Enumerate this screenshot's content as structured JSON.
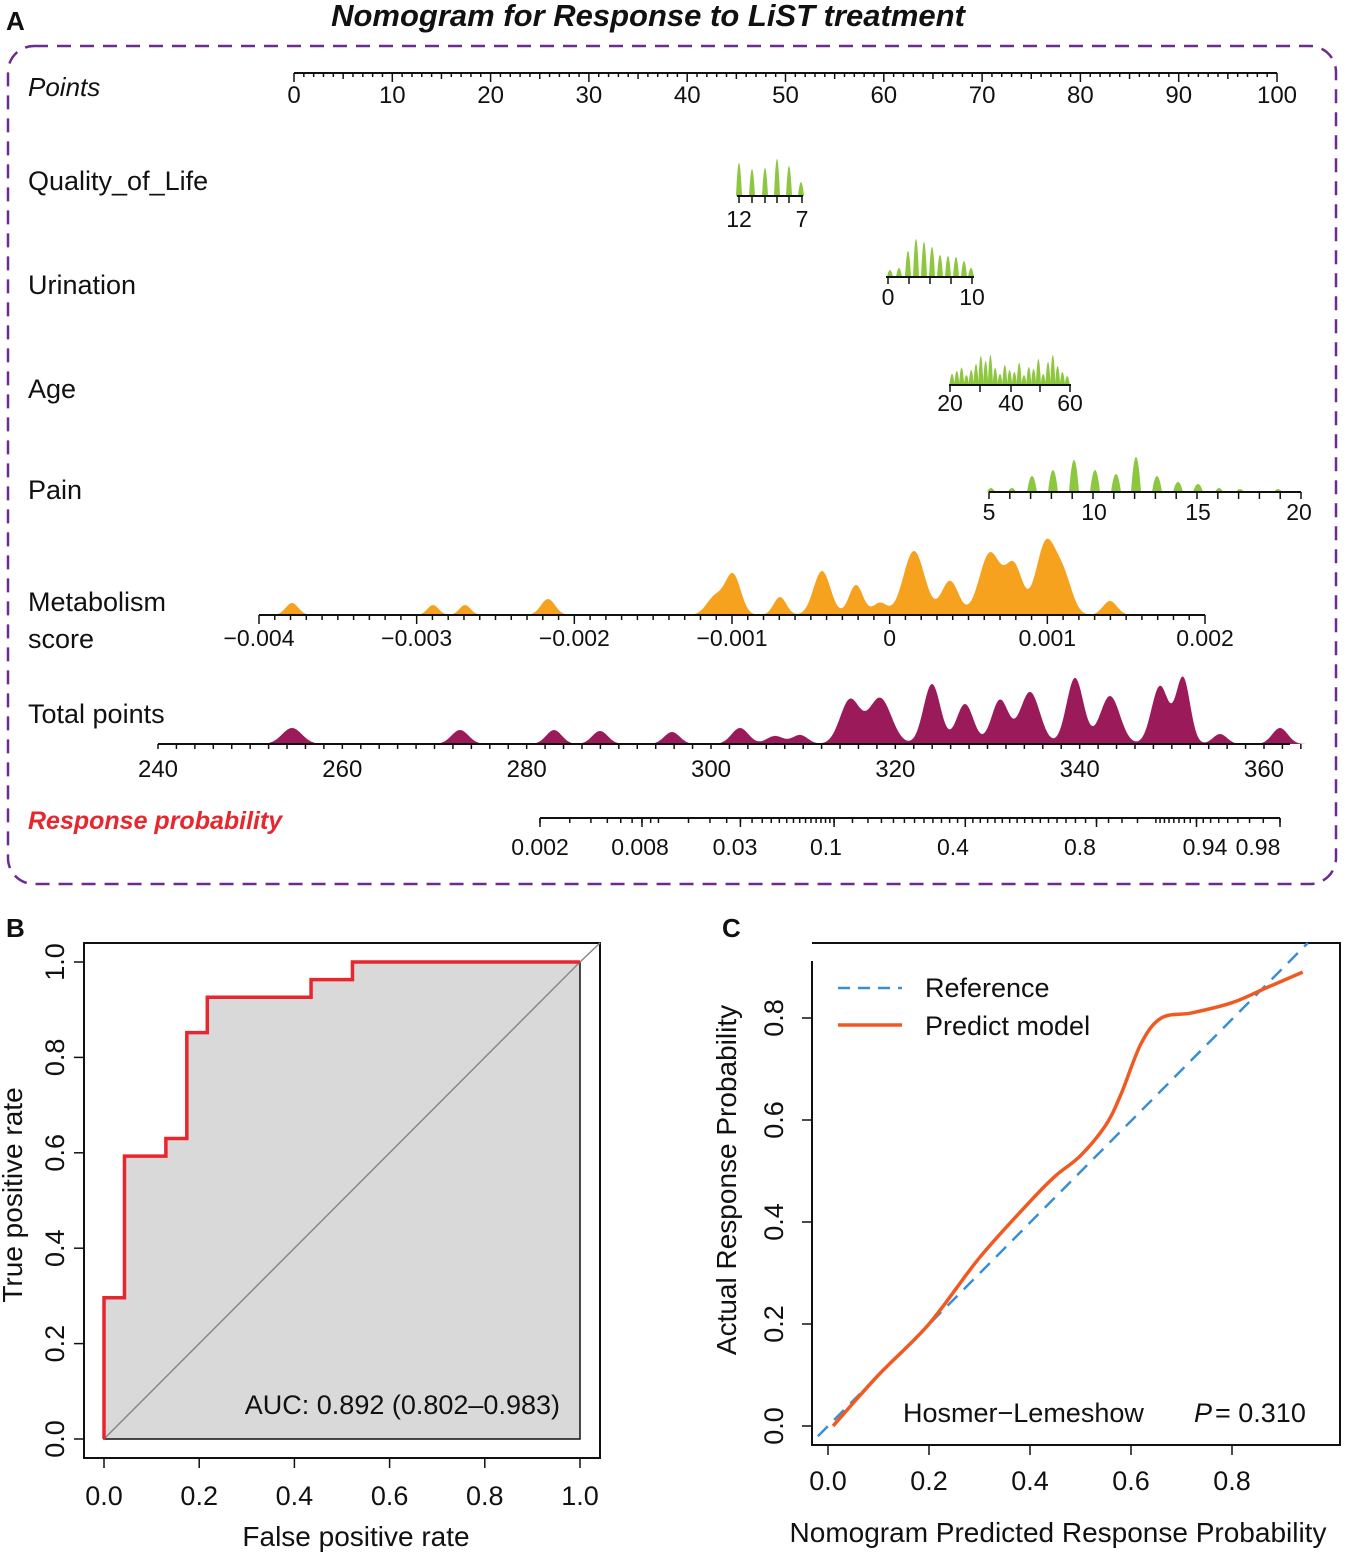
{
  "colors": {
    "green": "#8dc63f",
    "orange": "#f6a21e",
    "magenta": "#9b1b5a",
    "frame": "#6a2c8f",
    "red": "#e8262d",
    "roc_fill": "#d9d9d9",
    "blue": "#3a8fd4",
    "calib_orange": "#f05a22"
  },
  "panels": {
    "a_label": "A",
    "b_label": "B",
    "c_label": "C"
  },
  "nomogram": {
    "title": "Nomogram for Response to LiST treatment",
    "points_label": "Points",
    "points_ticks": [
      "0",
      "10",
      "20",
      "30",
      "40",
      "50",
      "60",
      "70",
      "80",
      "90",
      "100"
    ],
    "quality_label": "Quality_of_Life",
    "quality_ticks": [
      "12",
      "7"
    ],
    "urination_label": "Urination",
    "urination_ticks": [
      "0",
      "10"
    ],
    "age_label": "Age",
    "age_ticks": [
      "20",
      "40",
      "60"
    ],
    "pain_label": "Pain",
    "pain_ticks": [
      "5",
      "10",
      "15",
      "20"
    ],
    "metabolism_label_1": "Metabolism",
    "metabolism_label_2": "score",
    "metabolism_ticks": [
      "−0.004",
      "−0.003",
      "−0.002",
      "−0.001",
      "0",
      "0.001",
      "0.002"
    ],
    "total_label": "Total points",
    "total_ticks": [
      "240",
      "260",
      "280",
      "300",
      "320",
      "340",
      "360"
    ],
    "prob_label": "Response probability",
    "prob_ticks": [
      "0.002",
      "0.008",
      "0.03",
      "0.1",
      "0.4",
      "0.8",
      "0.94",
      "0.98"
    ]
  },
  "chart_data": [
    {
      "type": "nomogram",
      "title": "Nomogram for Response to LiST treatment",
      "points_range": [
        0,
        100
      ],
      "variables": [
        {
          "name": "Quality_of_Life",
          "scale_from": 12,
          "scale_to": 7,
          "points_range": [
            45,
            52
          ]
        },
        {
          "name": "Urination",
          "scale_from": 0,
          "scale_to": 10,
          "points_range": [
            60,
            69
          ]
        },
        {
          "name": "Age",
          "scale_from": 20,
          "scale_to": 60,
          "points_range": [
            66,
            79
          ]
        },
        {
          "name": "Pain",
          "scale_from": 5,
          "scale_to": 20,
          "points_range": [
            70,
            100
          ]
        },
        {
          "name": "Metabolism score",
          "scale_from": -0.004,
          "scale_to": 0.002
        }
      ],
      "total_points_range": [
        240,
        360
      ],
      "response_probability_ticks": [
        0.002,
        0.008,
        0.03,
        0.1,
        0.4,
        0.8,
        0.94,
        0.98
      ]
    },
    {
      "type": "line",
      "name": "ROC curve",
      "xlabel": "False positive rate",
      "ylabel": "True positive rate",
      "xlim": [
        0,
        1
      ],
      "ylim": [
        0,
        1
      ],
      "x_ticks": [
        "0.0",
        "0.2",
        "0.4",
        "0.6",
        "0.8",
        "1.0"
      ],
      "y_ticks": [
        "0.0",
        "0.2",
        "0.4",
        "0.6",
        "0.8",
        "1.0"
      ],
      "roc_points": [
        [
          0,
          0
        ],
        [
          0,
          0.296
        ],
        [
          0.043,
          0.296
        ],
        [
          0.043,
          0.593
        ],
        [
          0.13,
          0.593
        ],
        [
          0.13,
          0.63
        ],
        [
          0.174,
          0.63
        ],
        [
          0.174,
          0.852
        ],
        [
          0.217,
          0.852
        ],
        [
          0.217,
          0.926
        ],
        [
          0.435,
          0.926
        ],
        [
          0.435,
          0.963
        ],
        [
          0.522,
          0.963
        ],
        [
          0.522,
          1.0
        ],
        [
          1.0,
          1.0
        ]
      ],
      "auc_text": "AUC: 0.892 (0.802–0.983)"
    },
    {
      "type": "line",
      "name": "Calibration curve",
      "xlabel": "Nomogram Predicted Response Probability",
      "ylabel": "Actual  Response Probability",
      "xlim": [
        -0.03,
        0.96
      ],
      "ylim": [
        -0.03,
        0.92
      ],
      "x_ticks": [
        "0.0",
        "0.2",
        "0.4",
        "0.6",
        "0.8"
      ],
      "y_ticks": [
        "0.0",
        "0.2",
        "0.4",
        "0.6",
        "0.8"
      ],
      "series": [
        {
          "name": "Reference",
          "points": [
            [
              -0.02,
              -0.02
            ],
            [
              0.95,
              0.95
            ]
          ]
        },
        {
          "name": "Predict model",
          "points": [
            [
              0.01,
              0.0
            ],
            [
              0.1,
              0.1
            ],
            [
              0.2,
              0.2
            ],
            [
              0.3,
              0.33
            ],
            [
              0.4,
              0.44
            ],
            [
              0.45,
              0.49
            ],
            [
              0.5,
              0.53
            ],
            [
              0.55,
              0.59
            ],
            [
              0.58,
              0.65
            ],
            [
              0.62,
              0.75
            ],
            [
              0.66,
              0.8
            ],
            [
              0.72,
              0.81
            ],
            [
              0.8,
              0.83
            ],
            [
              0.87,
              0.86
            ],
            [
              0.94,
              0.89
            ]
          ]
        }
      ],
      "legend": [
        "Reference",
        "Predict model"
      ],
      "hl_label": "Hosmer−Lemeshow",
      "hl_p": "P",
      "hl_value": "= 0.310"
    }
  ]
}
